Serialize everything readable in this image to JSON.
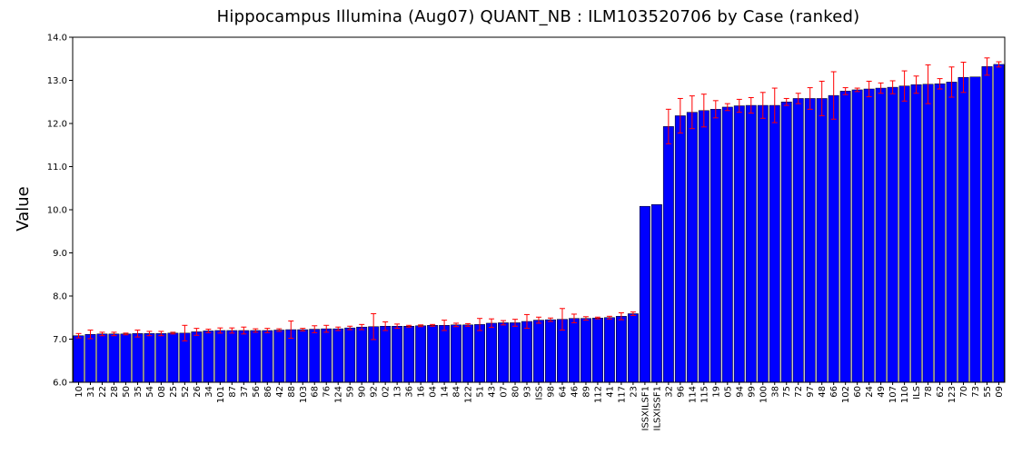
{
  "chart_data": {
    "type": "bar",
    "title": "Hippocampus Illumina (Aug07) QUANT_NB : ILM103520706 by Case (ranked)",
    "xlabel": "",
    "ylabel": "Value",
    "ylim": [
      6.0,
      14.0
    ],
    "yticks": [
      "6.0",
      "7.0",
      "8.0",
      "9.0",
      "10.0",
      "11.0",
      "12.0",
      "13.0",
      "14.0"
    ],
    "grid": false,
    "legend": "none",
    "colors": {
      "bar": "#0000ff",
      "bar_edge": "#000000",
      "error": "#ff0000",
      "axis": "#000000"
    },
    "categories": [
      "10",
      "31",
      "22",
      "28",
      "50",
      "35",
      "54",
      "08",
      "25",
      "52",
      "26",
      "34",
      "101",
      "87",
      "37",
      "56",
      "86",
      "42",
      "88",
      "103",
      "68",
      "76",
      "124",
      "59",
      "90",
      "92",
      "02",
      "13",
      "36",
      "16",
      "04",
      "14",
      "84",
      "122",
      "51",
      "43",
      "07",
      "80",
      "93",
      "ISS",
      "98",
      "64",
      "46",
      "89",
      "112",
      "41",
      "117",
      "23",
      "ISSXILSF1",
      "ILSXISSF1",
      "32",
      "96",
      "114",
      "115",
      "19",
      "05",
      "94",
      "99",
      "100",
      "38",
      "75",
      "72",
      "97",
      "48",
      "66",
      "102",
      "60",
      "24",
      "49",
      "107",
      "110",
      "ILS",
      "78",
      "62",
      "123",
      "70",
      "73",
      "55",
      "09"
    ],
    "values": [
      7.08,
      7.11,
      7.12,
      7.12,
      7.12,
      7.13,
      7.13,
      7.13,
      7.14,
      7.14,
      7.17,
      7.19,
      7.2,
      7.2,
      7.2,
      7.2,
      7.2,
      7.21,
      7.22,
      7.22,
      7.23,
      7.24,
      7.24,
      7.26,
      7.28,
      7.29,
      7.3,
      7.3,
      7.3,
      7.31,
      7.32,
      7.32,
      7.33,
      7.33,
      7.34,
      7.37,
      7.38,
      7.38,
      7.41,
      7.44,
      7.45,
      7.46,
      7.48,
      7.48,
      7.49,
      7.5,
      7.53,
      7.59,
      10.08,
      10.12,
      11.93,
      12.18,
      12.26,
      12.3,
      12.33,
      12.38,
      12.41,
      12.42,
      12.42,
      12.42,
      12.5,
      12.58,
      12.58,
      12.58,
      12.65,
      12.75,
      12.78,
      12.8,
      12.82,
      12.84,
      12.87,
      12.9,
      12.91,
      12.92,
      12.96,
      13.07,
      13.08,
      13.32,
      13.37
    ],
    "errors": [
      0.05,
      0.1,
      0.04,
      0.04,
      0.02,
      0.08,
      0.05,
      0.05,
      0.02,
      0.18,
      0.08,
      0.04,
      0.06,
      0.06,
      0.08,
      0.04,
      0.05,
      0.03,
      0.2,
      0.03,
      0.08,
      0.08,
      0.04,
      0.04,
      0.06,
      0.3,
      0.1,
      0.05,
      0.02,
      0.02,
      0.02,
      0.12,
      0.04,
      0.03,
      0.14,
      0.1,
      0.05,
      0.08,
      0.16,
      0.07,
      0.04,
      0.25,
      0.1,
      0.04,
      0.02,
      0.03,
      0.08,
      0.04,
      0,
      0,
      0.4,
      0.4,
      0.38,
      0.38,
      0.2,
      0.08,
      0.15,
      0.18,
      0.3,
      0.4,
      0.08,
      0.12,
      0.25,
      0.4,
      0.55,
      0.08,
      0.04,
      0.18,
      0.12,
      0.15,
      0.35,
      0.2,
      0.45,
      0.12,
      0.35,
      0.35,
      0,
      0.2,
      0.06
    ]
  }
}
